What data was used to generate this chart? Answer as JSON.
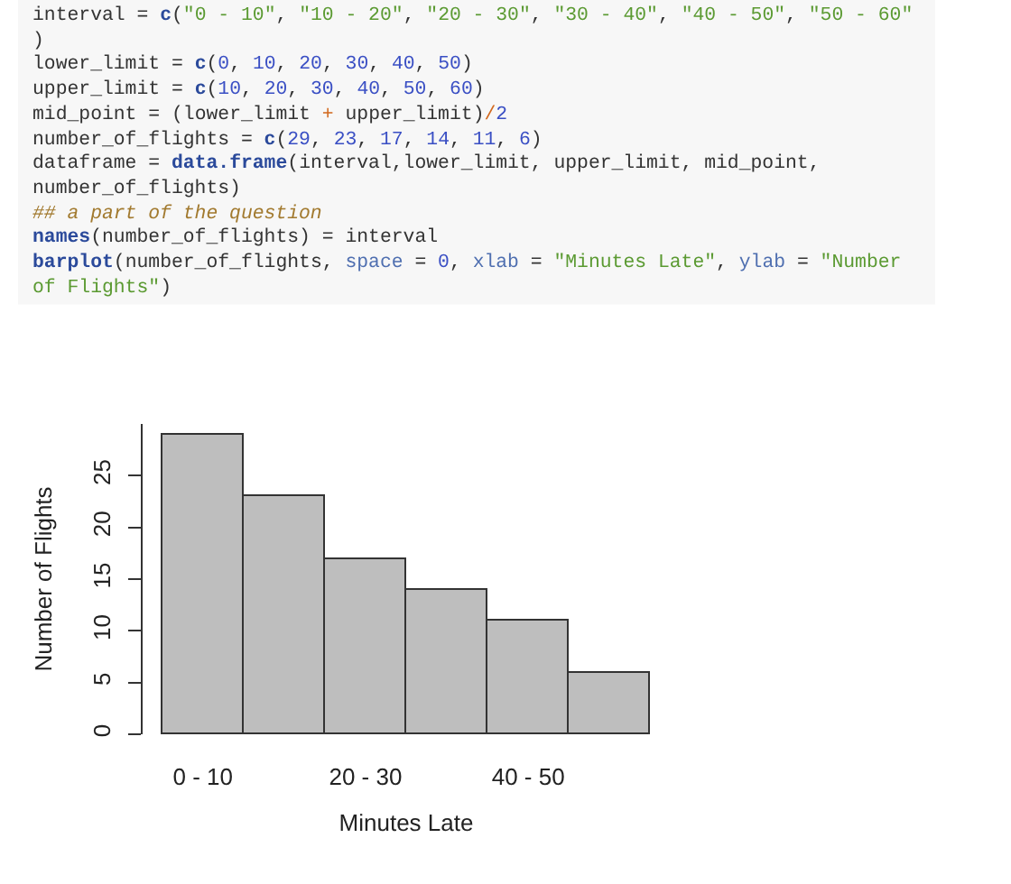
{
  "chart_data": {
    "type": "bar",
    "categories": [
      "0 - 10",
      null,
      "20 - 30",
      null,
      "40 - 50",
      null
    ],
    "values": [
      29,
      23,
      17,
      14,
      11,
      6
    ],
    "color": "#bebebe",
    "xlabel": "Minutes Late",
    "ylabel": "Number of Flights",
    "ylim": [
      0,
      30
    ],
    "yticks": [
      0,
      5,
      10,
      15,
      20,
      25
    ],
    "annotations": [
      "interval = c(\"0 - 10\", \"10 - 20\", \"20 - 30\", \"30 - 40\", \"40 - 50\", \"50 - 60\"",
      ")",
      "lower_limit = c(0, 10, 20, 30, 40, 50)",
      "upper_limit = c(10, 20, 30, 40, 50, 60)",
      "mid_point = (lower_limit + upper_limit)/2",
      "number_of_flights = c(29, 23, 17, 14, 11, 6)",
      "dataframe = data.frame(interval,lower_limit, upper_limit, mid_point,",
      "number_of_flights)",
      "## a part of the question",
      "names(number_of_flights) = interval",
      "barplot(number_of_flights, space = 0, xlab = \"Minutes Late\", ylab = \"Number",
      "of Flights\")"
    ]
  }
}
